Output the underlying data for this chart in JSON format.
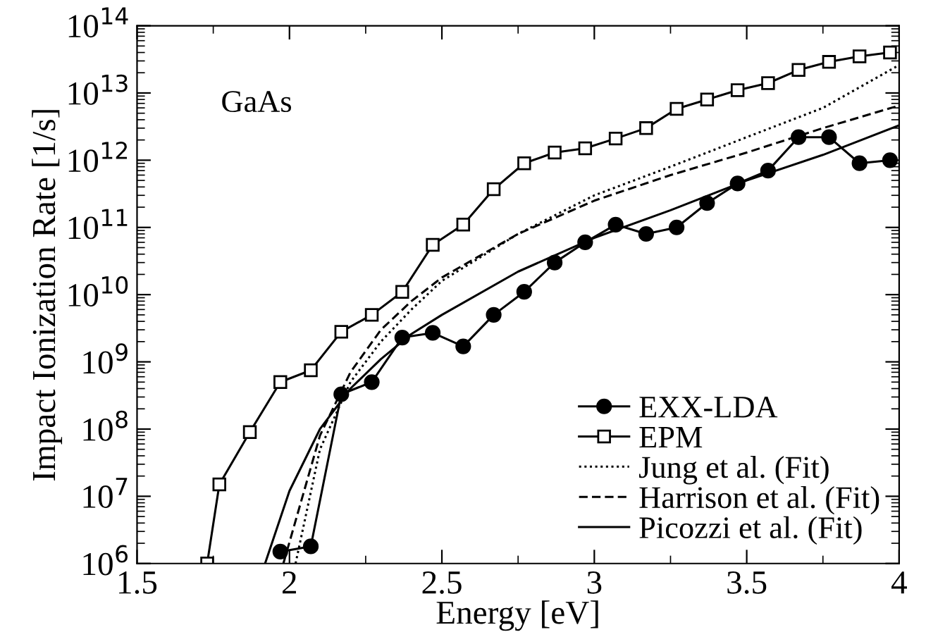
{
  "chart_data": {
    "type": "line",
    "xlabel": "Energy [eV]",
    "ylabel": "Impact Ionization Rate [1/s]",
    "log": "y",
    "xlim": [
      1.5,
      4
    ],
    "ylim": [
      1000000.0,
      100000000000000.0
    ],
    "xticks": [
      1.5,
      2,
      2.5,
      3,
      3.5,
      4
    ],
    "yticks": [
      {
        "value": 1000000.0,
        "label": "10$^{6}$"
      },
      {
        "value": 10000000.0,
        "label": "10$^{7}$"
      },
      {
        "value": 100000000.0,
        "label": "10$^{8}$"
      },
      {
        "value": 1000000000.0,
        "label": "10$^{9}$"
      },
      {
        "value": 10000000000.0,
        "label": "10$^{10}$"
      },
      {
        "value": 100000000000.0,
        "label": "10$^{11}$"
      },
      {
        "value": 1000000000000.0,
        "label": "10$^{12}$"
      },
      {
        "value": 10000000000000.0,
        "label": "10$^{13}$"
      },
      {
        "value": 100000000000000.0,
        "label": "10$^{14}$"
      }
    ],
    "grid": false,
    "legend": "bottom right",
    "annotations": [
      "GaAs"
    ],
    "series": [
      {
        "name": "EXX-LDA",
        "color": "#000000",
        "marker": "circle",
        "line_style": "solid",
        "x": [
          1.97,
          2.07,
          2.17,
          2.27,
          2.37,
          2.47,
          2.57,
          2.67,
          2.77,
          2.87,
          2.97,
          3.07,
          3.17,
          3.27,
          3.37,
          3.47,
          3.57,
          3.67,
          3.77,
          3.87,
          3.97
        ],
        "values": [
          1500000.0,
          1800000.0,
          330000000.0,
          500000000.0,
          2300000000.0,
          2700000000.0,
          1700000000.0,
          5000000000.0,
          11000000000.0,
          30000000000.0,
          60000000000.0,
          110000000000.0,
          80000000000.0,
          100000000000.0,
          230000000000.0,
          450000000000.0,
          700000000000.0,
          2200000000000.0,
          2200000000000.0,
          900000000000.0,
          1000000000000.0
        ]
      },
      {
        "name": "EPM",
        "color": "#000000",
        "marker": "square",
        "line_style": "solid",
        "x": [
          1.73,
          1.77,
          1.87,
          1.97,
          2.07,
          2.17,
          2.27,
          2.37,
          2.47,
          2.57,
          2.67,
          2.77,
          2.87,
          2.97,
          3.07,
          3.17,
          3.27,
          3.37,
          3.47,
          3.57,
          3.67,
          3.77,
          3.87,
          3.97
        ],
        "values": [
          1000000.0,
          15000000.0,
          90000000.0,
          500000000.0,
          750000000.0,
          2800000000.0,
          5000000000.0,
          11000000000.0,
          55000000000.0,
          110000000000.0,
          370000000000.0,
          900000000000.0,
          1300000000000.0,
          1500000000000.0,
          2100000000000.0,
          3000000000000.0,
          5800000000000.0,
          8000000000000.0,
          11000000000000.0,
          14000000000000.0,
          22000000000000.0,
          29000000000000.0,
          35000000000000.0,
          40000000000000.0
        ]
      },
      {
        "name": "Jung et al. (Fit)",
        "color": "#000000",
        "marker": "none",
        "line_style": "dotted",
        "x": [
          2.02,
          2.1,
          2.2,
          2.3,
          2.4,
          2.5,
          2.75,
          3.0,
          3.25,
          3.5,
          3.75,
          4.0
        ],
        "values": [
          1000000.0,
          50000000.0,
          500000000.0,
          2000000000.0,
          6000000000.0,
          16000000000.0,
          80000000000.0,
          300000000000.0,
          800000000000.0,
          2200000000000.0,
          6000000000000.0,
          26000000000000.0
        ]
      },
      {
        "name": "Harrison et al. (Fit)",
        "color": "#000000",
        "marker": "none",
        "line_style": "dashed",
        "x": [
          1.98,
          2.1,
          2.2,
          2.3,
          2.4,
          2.5,
          2.75,
          3.0,
          3.25,
          3.5,
          3.75,
          4.0
        ],
        "values": [
          1000000.0,
          80000000.0,
          700000000.0,
          3000000000.0,
          8000000000.0,
          18000000000.0,
          80000000000.0,
          250000000000.0,
          600000000000.0,
          1300000000000.0,
          3000000000000.0,
          6500000000000.0
        ]
      },
      {
        "name": "Picozzi et al. (Fit)",
        "color": "#000000",
        "marker": "none",
        "line_style": "solid",
        "x": [
          1.92,
          2.0,
          2.1,
          2.2,
          2.3,
          2.4,
          2.5,
          2.75,
          3.0,
          3.25,
          3.5,
          3.75,
          4.0
        ],
        "values": [
          1000000.0,
          12000000.0,
          100000000.0,
          400000000.0,
          1100000000.0,
          2600000000.0,
          5000000000.0,
          22000000000.0,
          70000000000.0,
          180000000000.0,
          500000000000.0,
          1200000000000.0,
          3300000000000.0
        ]
      }
    ]
  }
}
